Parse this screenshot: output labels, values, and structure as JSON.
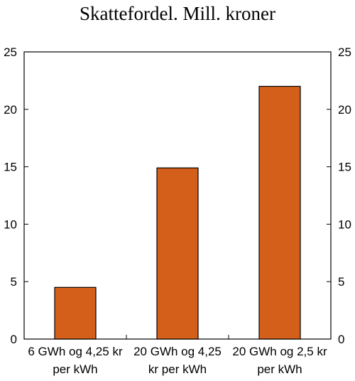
{
  "chart_data": {
    "type": "bar",
    "title": "Skattefordel. Mill. kroner",
    "xlabel": "",
    "ylabel": "",
    "categories": [
      [
        "6 GWh og 4,25 kr",
        "per kWh"
      ],
      [
        "20 GWh og 4,25",
        "kr per kWh"
      ],
      [
        "20 GWh og 2,5 kr",
        "per kWh"
      ]
    ],
    "series": [
      {
        "values": [
          4.5,
          14.9,
          22.0
        ]
      }
    ],
    "ylim": [
      0,
      25
    ],
    "yticks": [
      0,
      5,
      10,
      15,
      20,
      25
    ],
    "ytick_labels": [
      "0",
      "5",
      "10",
      "15",
      "20",
      "25"
    ],
    "secondary_y_axis": true,
    "grid": false,
    "legend": "none",
    "colors": {
      "bar": "#D45F1A",
      "bar_border": "#000000",
      "axis": "#000000"
    }
  }
}
